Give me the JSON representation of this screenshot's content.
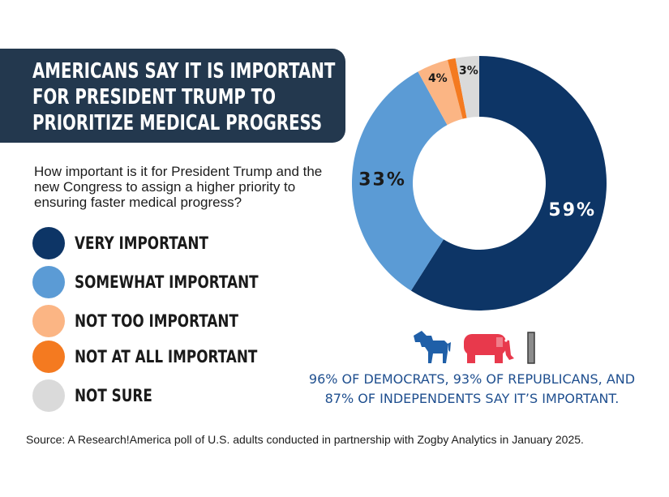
{
  "title_lines": [
    "AMERICANS SAY IT IS IMPORTANT",
    "FOR PRESIDENT TRUMP TO",
    "PRIORITIZE MEDICAL PROGRESS"
  ],
  "question": "How important is it for President Trump and the new Congress to assign a higher priority to ensuring faster medical progress?",
  "chart_data": {
    "type": "pie",
    "style": "donut",
    "categories": [
      "VERY IMPORTANT",
      "SOMEWHAT IMPORTANT",
      "NOT TOO IMPORTANT",
      "NOT AT ALL IMPORTANT",
      "NOT SURE"
    ],
    "values": [
      59,
      33,
      4,
      1,
      3
    ],
    "data_labels": [
      "59%",
      "33%",
      "4%",
      "",
      "3%"
    ],
    "colors": [
      "#0d3566",
      "#5b9bd5",
      "#fbb584",
      "#f47a20",
      "#dadada"
    ],
    "legend_position": "left",
    "unit": "%"
  },
  "footnote_lines": [
    "96% OF DEMOCRATS, 93% OF REPUBLICANS, AND",
    "87% OF INDEPENDENTS SAY IT’S IMPORTANT."
  ],
  "icons": [
    "donkey-icon",
    "elephant-icon",
    "independent-bar-icon"
  ],
  "icon_colors": {
    "democrat": "#1f5fa8",
    "republican": "#e8394c",
    "independent": "#8c8c8c"
  },
  "source": "Source:  A Research!America poll of U.S. adults conducted in partnership with Zogby Analytics in January 2025."
}
